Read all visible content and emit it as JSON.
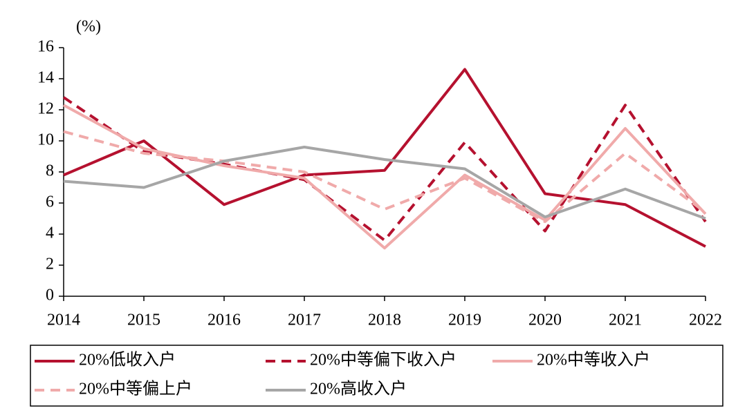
{
  "chart_data": {
    "type": "line",
    "y_label": "(%)",
    "x": [
      2014,
      2015,
      2016,
      2017,
      2018,
      2019,
      2020,
      2021,
      2022
    ],
    "xlim": [
      2014,
      2022
    ],
    "xticks": [
      2014,
      2015,
      2016,
      2017,
      2018,
      2019,
      2020,
      2021,
      2022
    ],
    "ylim": [
      0,
      16
    ],
    "yticks": [
      0,
      2,
      4,
      6,
      8,
      10,
      12,
      14,
      16
    ],
    "series": [
      {
        "name": "20%低收入户",
        "color": "#b5112f",
        "dashed": false,
        "values": [
          7.8,
          10.0,
          5.9,
          7.8,
          8.1,
          14.6,
          6.6,
          5.9,
          3.2
        ]
      },
      {
        "name": "20%中等偏下收入户",
        "color": "#b5112f",
        "dashed": true,
        "values": [
          12.8,
          9.3,
          8.5,
          7.5,
          3.6,
          9.9,
          4.2,
          12.3,
          4.8
        ]
      },
      {
        "name": "20%中等收入户",
        "color": "#f0aaaa",
        "dashed": false,
        "values": [
          12.3,
          9.5,
          8.4,
          7.6,
          3.1,
          7.8,
          4.9,
          10.8,
          5.3
        ]
      },
      {
        "name": "20%中等偏上户",
        "color": "#f0aaaa",
        "dashed": true,
        "values": [
          10.6,
          9.2,
          8.7,
          8.0,
          5.6,
          7.6,
          4.8,
          9.2,
          5.4
        ]
      },
      {
        "name": "20%高收入户",
        "color": "#a6a6a6",
        "dashed": false,
        "values": [
          7.4,
          7.0,
          8.7,
          9.6,
          8.8,
          8.2,
          5.1,
          6.9,
          5.0
        ]
      }
    ]
  }
}
